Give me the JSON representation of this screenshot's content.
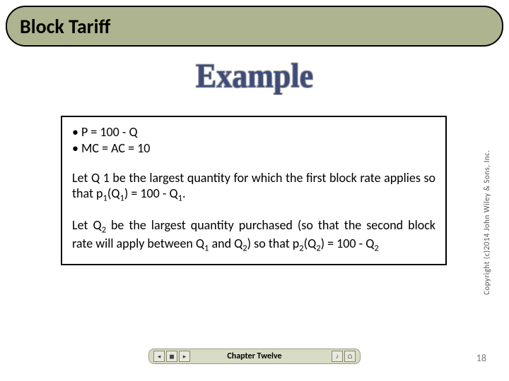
{
  "title": "Block Tariff",
  "example_heading": "Example",
  "bullets": {
    "line1": "• P = 100 - Q",
    "line2": "• MC = AC = 10"
  },
  "para1_html": "Let Q 1 be the largest quantity for which the first block rate applies so that p<sub>1</sub>(Q<sub>1</sub>) = 100 - Q<sub>1</sub>.",
  "para2_html": "Let Q<sub>2</sub> be the largest quantity purchased (so that the second block rate will apply between Q<sub>1</sub> and Q<sub>2</sub>) so that p<sub>2</sub>(Q<sub>2</sub>) = 100 - Q<sub>2</sub>",
  "copyright": "Copyright (c)2014 John Wiley & Sons, Inc.",
  "chapter": "Chapter Twelve",
  "page_number": "18",
  "colors": {
    "title_bg": "#adb48f",
    "title_border": "#000000",
    "example_color": "#3e4c7a",
    "box_border": "#000000",
    "footer_bg": "#d9dcc5",
    "footer_border": "#9a9a80",
    "page_num_color": "#7a7a7a",
    "body_bg": "#ffffff"
  },
  "typography": {
    "title_fontsize": 28,
    "example_fontsize": 44,
    "body_fontsize": 18,
    "chapter_fontsize": 12,
    "copyright_fontsize": 11,
    "page_num_fontsize": 14
  },
  "controls": {
    "prev": "◂",
    "stop": "◼",
    "next": "▸",
    "sound": "♪",
    "info": "⌂"
  }
}
